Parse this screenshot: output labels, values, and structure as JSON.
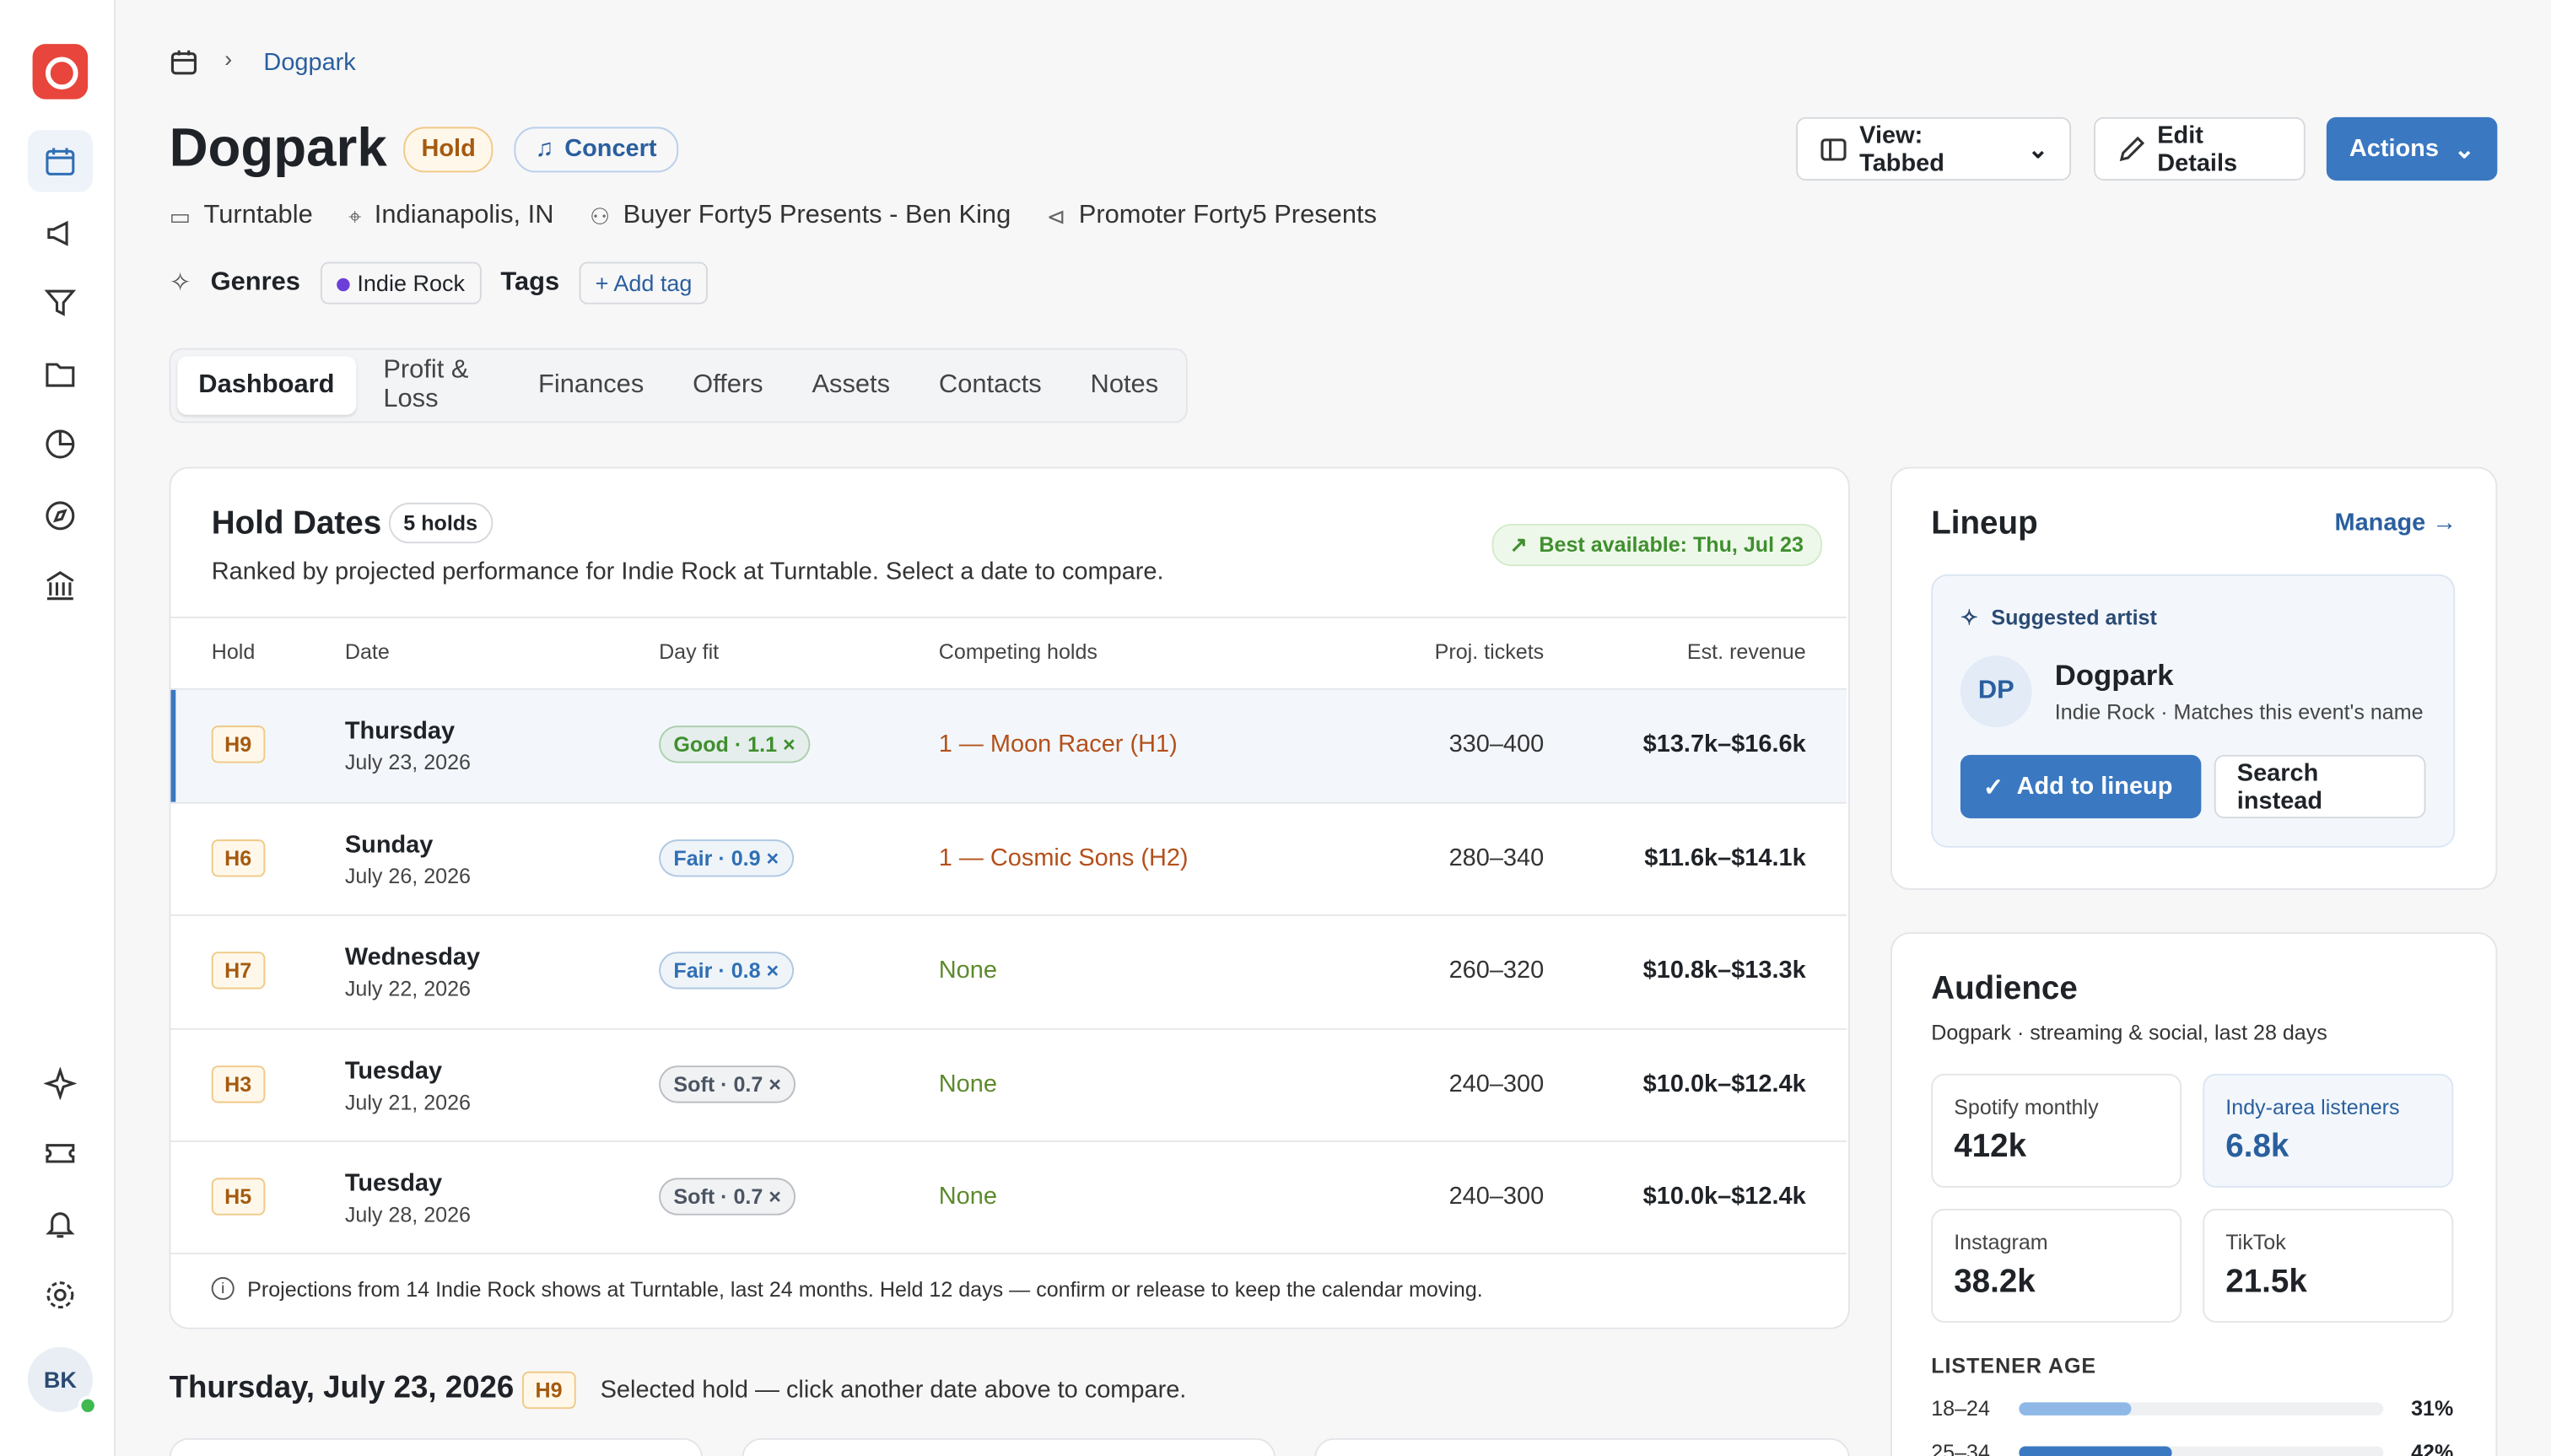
{
  "breadcrumb": {
    "current": "Dogpark"
  },
  "header": {
    "title": "Dogpark",
    "status": "Hold",
    "type": "Concert",
    "view_button": "View: Tabbed",
    "edit_button": "Edit Details",
    "actions_button": "Actions",
    "meta": [
      "Turntable",
      "Indianapolis, IN",
      "Buyer Forty5 Presents - Ben King",
      "Promoter Forty5 Presents"
    ],
    "genres_label": "Genres",
    "genre": "Indie Rock",
    "tags_label": "Tags",
    "add_tag": "+ Add tag"
  },
  "tabs": [
    "Dashboard",
    "Profit & Loss",
    "Finances",
    "Offers",
    "Assets",
    "Contacts",
    "Notes"
  ],
  "hold_dates": {
    "title": "Hold Dates",
    "count": "5 holds",
    "subtitle": "Ranked by projected performance for Indie Rock at Turntable. Select a date to compare.",
    "best": "Best available: Thu, Jul 23",
    "columns": [
      "Hold",
      "Date",
      "Day fit",
      "Competing holds",
      "Proj. tickets",
      "Est. revenue"
    ],
    "rows": [
      {
        "hold": "H9",
        "day": "Thursday",
        "date": "July 23, 2026",
        "fit": "Good · 1.1 ×",
        "fit_color": "#3f8f2f",
        "competing": "1 — Moon Racer (H1)",
        "competing_color": "#b4501a",
        "tickets": "330–400",
        "revenue": "$13.7k–$16.6k"
      },
      {
        "hold": "H6",
        "day": "Sunday",
        "date": "July 26, 2026",
        "fit": "Fair · 0.9 ×",
        "fit_color": "#2f6fb5",
        "competing": "1 — Cosmic Sons (H2)",
        "competing_color": "#b4501a",
        "tickets": "280–340",
        "revenue": "$11.6k–$14.1k"
      },
      {
        "hold": "H7",
        "day": "Wednesday",
        "date": "July 22, 2026",
        "fit": "Fair · 0.8 ×",
        "fit_color": "#2f6fb5",
        "competing": "None",
        "competing_color": "#5d8a2c",
        "tickets": "260–320",
        "revenue": "$10.8k–$13.3k"
      },
      {
        "hold": "H3",
        "day": "Tuesday",
        "date": "July 21, 2026",
        "fit": "Soft · 0.7 ×",
        "fit_color": "#4b5563",
        "competing": "None",
        "competing_color": "#5d8a2c",
        "tickets": "240–300",
        "revenue": "$10.0k–$12.4k"
      },
      {
        "hold": "H5",
        "day": "Tuesday",
        "date": "July 28, 2026",
        "fit": "Soft · 0.7 ×",
        "fit_color": "#4b5563",
        "competing": "None",
        "competing_color": "#5d8a2c",
        "tickets": "240–300",
        "revenue": "$10.0k–$12.4k"
      }
    ],
    "footnote": "Projections from 14 Indie Rock shows at Turntable, last 24 months. Held 12 days — confirm or release to keep the calendar moving."
  },
  "selected": {
    "date": "Thursday, July 23, 2026",
    "hold": "H9",
    "note": "Selected hold — click another date above to compare."
  },
  "lineup": {
    "title": "Lineup",
    "manage": "Manage →",
    "suggested": "Suggested artist",
    "initials": "DP",
    "artist": "Dogpark",
    "artist_meta": "Indie Rock · Matches this event's name",
    "add": "Add to lineup",
    "search": "Search instead"
  },
  "audience": {
    "title": "Audience",
    "subtitle": "Dogpark · streaming & social, last 28 days",
    "stats": [
      {
        "label": "Spotify monthly",
        "value": "412k"
      },
      {
        "label": "Indy-area listeners",
        "value": "6.8k"
      },
      {
        "label": "Instagram",
        "value": "38.2k"
      },
      {
        "label": "TikTok",
        "value": "21.5k"
      }
    ],
    "age_title": "LISTENER AGE",
    "ages": {
      "categories": [
        "18–24",
        "25–34"
      ],
      "values": [
        31,
        42
      ],
      "value_labels": [
        "31%",
        "42%"
      ],
      "xlim": [
        0,
        100
      ]
    }
  },
  "user": {
    "initials": "BK"
  }
}
